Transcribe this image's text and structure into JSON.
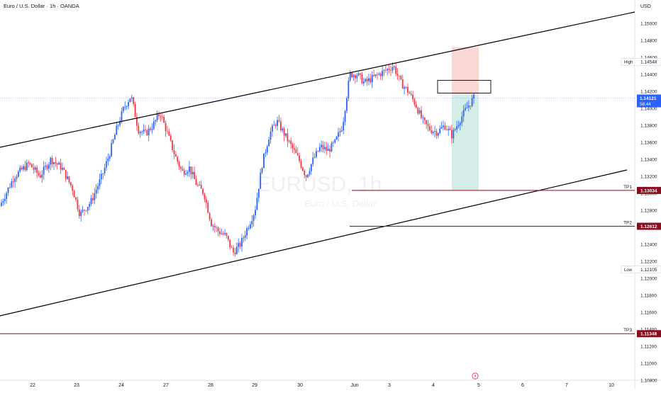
{
  "header": {
    "title": "Euro / U.S. Dollar · 1h · OANDA",
    "currency": "USD"
  },
  "watermark": {
    "symbol": "EURUSD, 1h",
    "name": "Euro / U.S. Dollar"
  },
  "chart_data": {
    "type": "candlestick",
    "title": "Euro / U.S. Dollar · 1h · OANDA",
    "ylabel": "USD",
    "ylim": [
      1.1072,
      1.154
    ],
    "y_ticks": [
      "1.15000",
      "1.14800",
      "1.14600",
      "1.14400",
      "1.14200",
      "1.14000",
      "1.13800",
      "1.13600",
      "1.13400",
      "1.13200",
      "1.13000",
      "1.12800",
      "1.12600",
      "1.12400",
      "1.12200",
      "1.12000",
      "1.11800",
      "1.11600",
      "1.11400",
      "1.11200",
      "1.11000",
      "1.10800"
    ],
    "x_ticks": [
      "22",
      "23",
      "24",
      "27",
      "28",
      "29",
      "30",
      "Jun",
      "3",
      "4",
      "5",
      "6",
      "7",
      "10"
    ],
    "price_path": [
      [
        0,
        1.1285
      ],
      [
        2,
        1.132
      ],
      [
        4,
        1.1335
      ],
      [
        5.5,
        1.132
      ],
      [
        7,
        1.134
      ],
      [
        8.5,
        1.133
      ],
      [
        10,
        1.1305
      ],
      [
        11,
        1.1275
      ],
      [
        12.5,
        1.129
      ],
      [
        14,
        1.132
      ],
      [
        15,
        1.1345
      ],
      [
        16,
        1.1375
      ],
      [
        17,
        1.14
      ],
      [
        18,
        1.1415
      ],
      [
        19,
        1.1375
      ],
      [
        20,
        1.137
      ],
      [
        21,
        1.138
      ],
      [
        22,
        1.1395
      ],
      [
        23,
        1.137
      ],
      [
        24,
        1.1345
      ],
      [
        25,
        1.1325
      ],
      [
        26,
        1.133
      ],
      [
        27,
        1.131
      ],
      [
        28,
        1.13
      ],
      [
        29,
        1.1265
      ],
      [
        30,
        1.1255
      ],
      [
        31,
        1.125
      ],
      [
        32,
        1.123
      ],
      [
        33,
        1.124
      ],
      [
        34,
        1.126
      ],
      [
        35,
        1.128
      ],
      [
        36,
        1.1335
      ],
      [
        37,
        1.137
      ],
      [
        38,
        1.1385
      ],
      [
        39,
        1.137
      ],
      [
        40,
        1.1355
      ],
      [
        41,
        1.134
      ],
      [
        42,
        1.132
      ],
      [
        43,
        1.134
      ],
      [
        44,
        1.1355
      ],
      [
        45,
        1.135
      ],
      [
        46,
        1.136
      ],
      [
        47,
        1.138
      ],
      [
        48,
        1.144
      ],
      [
        49,
        1.144
      ],
      [
        50,
        1.143
      ],
      [
        51,
        1.1435
      ],
      [
        52,
        1.144
      ],
      [
        53,
        1.1445
      ],
      [
        54,
        1.145
      ],
      [
        55,
        1.143
      ],
      [
        56,
        1.142
      ],
      [
        57,
        1.1405
      ],
      [
        58,
        1.1385
      ],
      [
        59,
        1.1375
      ],
      [
        60,
        1.1372
      ],
      [
        61,
        1.138
      ],
      [
        62,
        1.1368
      ],
      [
        63,
        1.1385
      ],
      [
        64,
        1.14
      ],
      [
        65,
        1.1412
      ]
    ],
    "period_high": {
      "label": "High",
      "value": "1.14548"
    },
    "period_low": {
      "label": "Low",
      "value": "1.12105"
    },
    "current_price": {
      "value": "1.14121",
      "countdown": "58:44"
    },
    "targets": [
      {
        "label": "TP1",
        "value": "1.13034"
      },
      {
        "label": "TP2",
        "value": "1.12612"
      },
      {
        "label": "TP3",
        "value": "1.11348"
      }
    ],
    "channel": {
      "upper": "rising trendline",
      "lower": "rising trendline"
    },
    "position": {
      "entry": 1.1416,
      "stop": 1.1472,
      "target": 1.1304,
      "side": "short"
    },
    "colors": {
      "up": "#2962ff",
      "down": "#f23645",
      "tp_line": "#880e1f",
      "price_tag": "#2962ff",
      "stop_zone": "#f7c9c5",
      "target_zone": "#c9e8e2",
      "trendline": "#000000"
    }
  }
}
